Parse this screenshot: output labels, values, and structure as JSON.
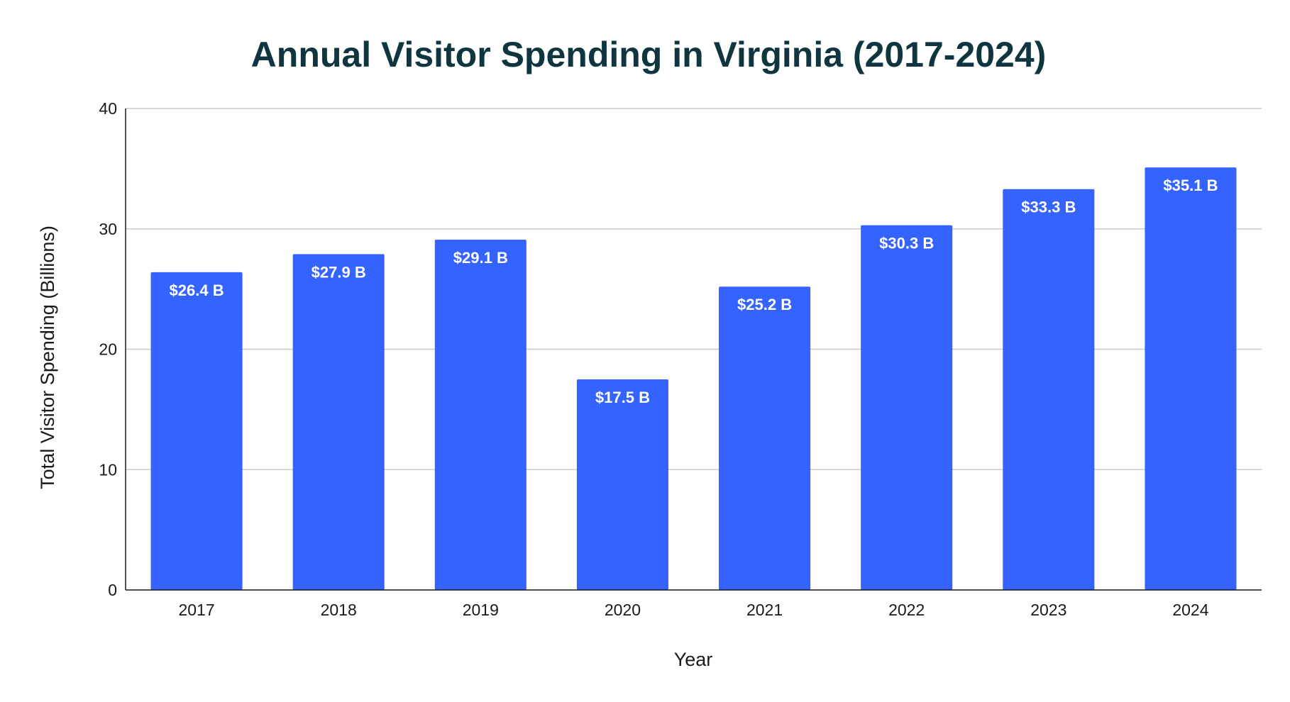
{
  "chart_data": {
    "type": "bar",
    "title": "Annual Visitor Spending in Virginia (2017-2024)",
    "xlabel": "Year",
    "ylabel": "Total Visitor Spending (Billions)",
    "categories": [
      "2017",
      "2018",
      "2019",
      "2020",
      "2021",
      "2022",
      "2023",
      "2024"
    ],
    "values": [
      26.4,
      27.9,
      29.1,
      17.5,
      25.2,
      30.3,
      33.3,
      35.1
    ],
    "data_labels": [
      "$26.4 B",
      "$27.9 B",
      "$29.1 B",
      "$17.5 B",
      "$25.2 B",
      "$30.3 B",
      "$33.3 B",
      "$35.1 B"
    ],
    "ylim": [
      0,
      40
    ],
    "yticks": [
      "0",
      "10",
      "20",
      "30",
      "40"
    ],
    "grid": true,
    "legend": "none",
    "bar_color": "#3563ff",
    "grid_color": "#cccccc",
    "title_color": "#0f3640"
  }
}
